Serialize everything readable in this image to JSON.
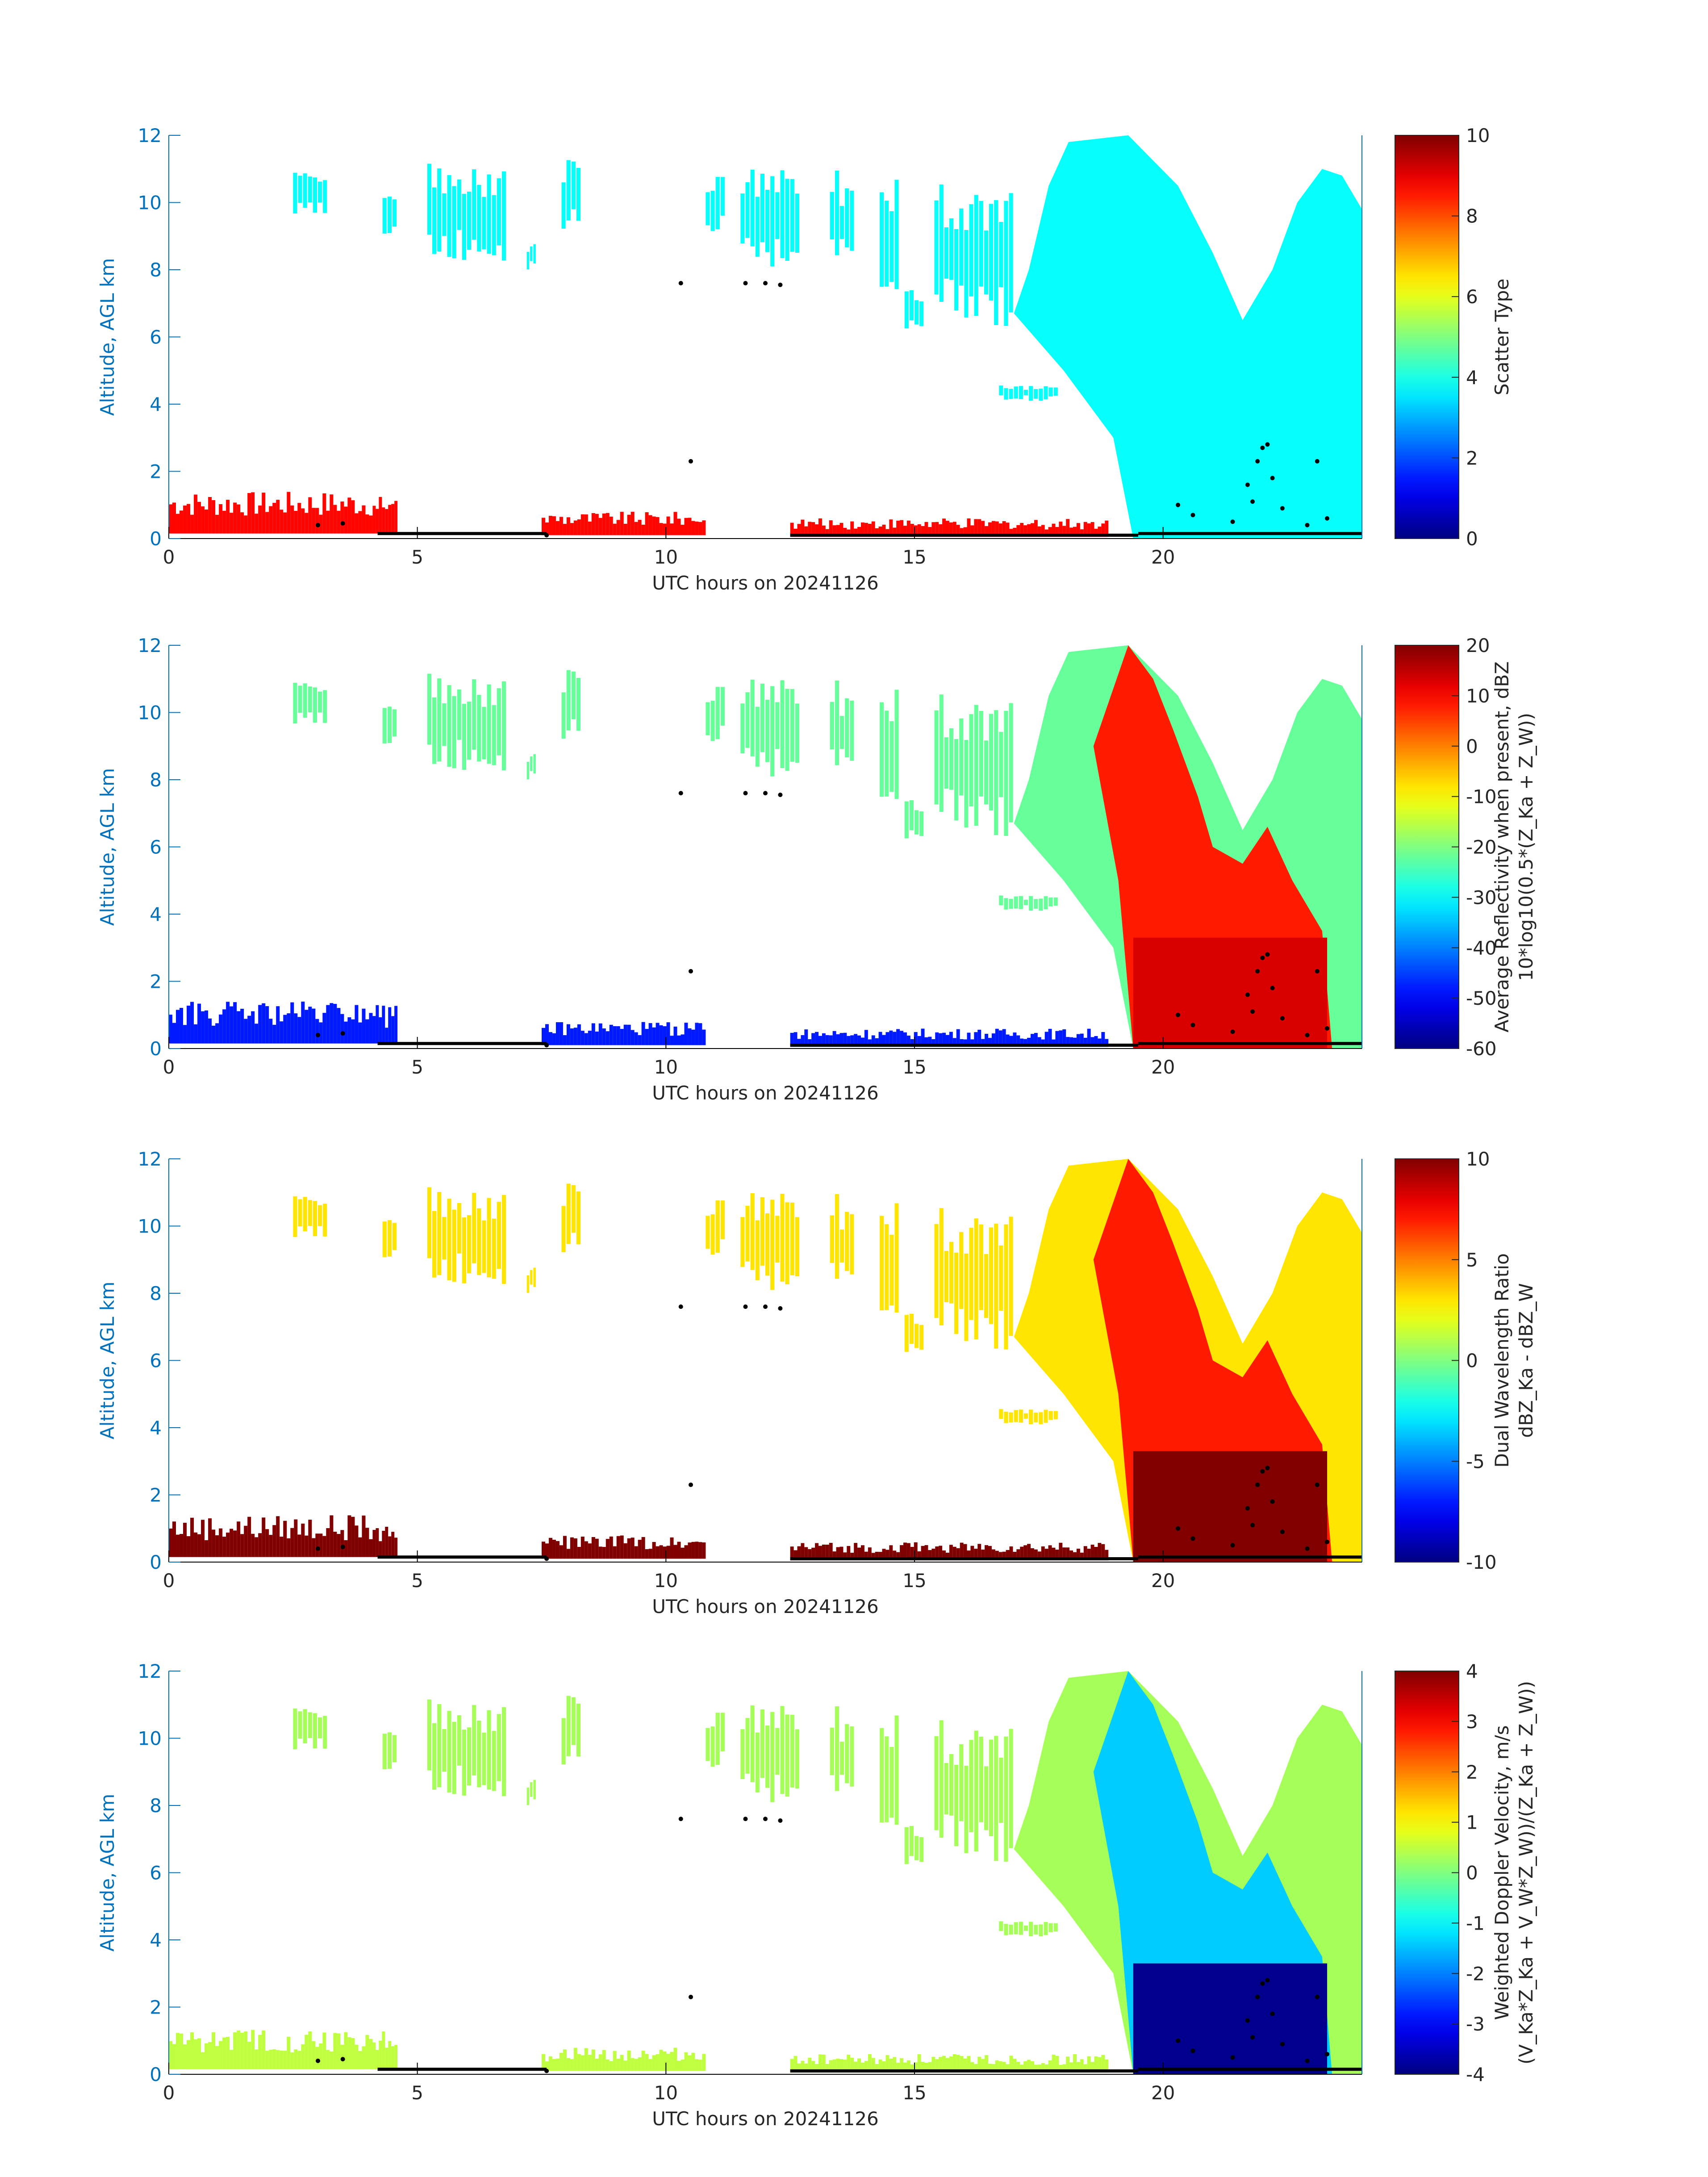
{
  "chart_data": [
    {
      "type": "heatmap",
      "title": "",
      "xlabel": "UTC hours on 20241126",
      "ylabel": "Altitude, AGL km",
      "xlim": [
        0,
        24
      ],
      "ylim": [
        0,
        12
      ],
      "xticks": [
        0,
        5,
        10,
        15,
        20
      ],
      "yticks": [
        0,
        2,
        4,
        6,
        8,
        10,
        12
      ],
      "colorbar": {
        "label_lines": [
          "Scatter Type"
        ],
        "clim": [
          0,
          10
        ],
        "ticks": [
          0,
          2,
          4,
          6,
          8,
          10
        ],
        "colormap": "jet"
      },
      "cloud_value": 3.8,
      "low_value": 8.7,
      "base_value": 0.2
    },
    {
      "type": "heatmap",
      "title": "",
      "xlabel": "UTC hours on 20241126",
      "ylabel": "Altitude, AGL km",
      "xlim": [
        0,
        24
      ],
      "ylim": [
        0,
        12
      ],
      "xticks": [
        0,
        5,
        10,
        15,
        20
      ],
      "yticks": [
        0,
        2,
        4,
        6,
        8,
        10,
        12
      ],
      "colorbar": {
        "label_lines": [
          "Average Reflectivity when present, dBZ",
          "10*log10(0.5*(Z_Ka + Z_W))"
        ],
        "clim": [
          -60,
          20
        ],
        "ticks": [
          -60,
          -50,
          -40,
          -30,
          -20,
          -10,
          0,
          10,
          20
        ],
        "colormap": "jet"
      },
      "cloud_value": -22,
      "core_value": 8,
      "rain_value": 13,
      "low_value": -48
    },
    {
      "type": "heatmap",
      "title": "",
      "xlabel": "UTC hours on 20241126",
      "ylabel": "Altitude, AGL km",
      "xlim": [
        0,
        24
      ],
      "ylim": [
        0,
        12
      ],
      "xticks": [
        0,
        5,
        10,
        15,
        20
      ],
      "yticks": [
        0,
        2,
        4,
        6,
        8,
        10,
        12
      ],
      "colorbar": {
        "label_lines": [
          "Dual Wavelength Ratio",
          "dBZ_Ka - dBZ_W"
        ],
        "clim": [
          -10,
          10
        ],
        "ticks": [
          -10,
          -5,
          0,
          5,
          10
        ],
        "colormap": "jet"
      },
      "cloud_value": 3,
      "core_value": 7,
      "rain_value": 10,
      "low_value": 10
    },
    {
      "type": "heatmap",
      "title": "",
      "xlabel": "UTC hours on 20241126",
      "ylabel": "Altitude, AGL km",
      "xlim": [
        0,
        24
      ],
      "ylim": [
        0,
        12
      ],
      "xticks": [
        0,
        5,
        10,
        15,
        20
      ],
      "yticks": [
        0,
        2,
        4,
        6,
        8,
        10,
        12
      ],
      "colorbar": {
        "label_lines": [
          "Weighted Doppler Velocity, m/s",
          "(V_Ka*Z_Ka + V_W*Z_W))/(Z_Ka + Z_W))"
        ],
        "clim": [
          -4,
          4
        ],
        "ticks": [
          -4,
          -3,
          -2,
          -1,
          0,
          1,
          2,
          3,
          4
        ],
        "colormap": "jet"
      },
      "cloud_value": 0.3,
      "core_value": -1.4,
      "rain_value": -3.9,
      "low_value": 0.5
    }
  ],
  "echo_regions": {
    "cirrus_patches": [
      [
        2.5,
        3.2,
        9.5,
        11.0
      ],
      [
        4.3,
        4.6,
        8.8,
        10.2
      ],
      [
        5.2,
        6.8,
        8.2,
        11.2
      ],
      [
        7.2,
        7.4,
        8.0,
        8.8
      ],
      [
        7.9,
        8.3,
        9.0,
        11.3
      ],
      [
        10.8,
        11.2,
        9.0,
        10.8
      ],
      [
        11.5,
        12.7,
        8.0,
        11.0
      ],
      [
        13.3,
        13.8,
        7.8,
        11.0
      ],
      [
        14.3,
        14.7,
        7.2,
        11.0
      ],
      [
        14.8,
        15.2,
        6.0,
        7.6
      ],
      [
        15.4,
        17.0,
        6.2,
        10.6
      ],
      [
        16.7,
        17.9,
        4.1,
        4.6
      ]
    ],
    "main_cloud": [
      [
        17.0,
        6.7
      ],
      [
        17.3,
        8.0
      ],
      [
        17.7,
        10.5
      ],
      [
        18.1,
        11.8
      ],
      [
        19.3,
        12.0
      ],
      [
        20.3,
        10.5
      ],
      [
        21.0,
        8.5
      ],
      [
        21.6,
        6.5
      ],
      [
        22.2,
        8.0
      ],
      [
        22.7,
        10.0
      ],
      [
        23.2,
        11.0
      ],
      [
        23.6,
        10.8
      ],
      [
        24.0,
        9.8
      ],
      [
        24.0,
        0.0
      ],
      [
        19.4,
        0.0
      ],
      [
        19.0,
        3.0
      ],
      [
        18.0,
        5.0
      ]
    ],
    "core": [
      [
        19.3,
        12.0
      ],
      [
        19.8,
        11.0
      ],
      [
        20.2,
        9.5
      ],
      [
        20.7,
        7.5
      ],
      [
        21.0,
        6.0
      ],
      [
        21.6,
        5.5
      ],
      [
        22.1,
        6.6
      ],
      [
        22.6,
        5.0
      ],
      [
        23.2,
        3.5
      ],
      [
        23.4,
        0.0
      ],
      [
        19.4,
        0.0
      ],
      [
        19.1,
        5.0
      ],
      [
        18.6,
        9.0
      ]
    ],
    "rain_layer": [
      19.4,
      23.3,
      0.0,
      3.3
    ],
    "low_clouds": [
      [
        0.0,
        4.1,
        0.15,
        1.4
      ],
      [
        4.1,
        4.6,
        0.15,
        1.3
      ],
      [
        7.5,
        10.8,
        0.1,
        0.8
      ],
      [
        12.5,
        18.9,
        0.05,
        0.6
      ]
    ]
  },
  "ground_markers": {
    "cloud_base_segments": [
      [
        4.2,
        7.6,
        0.15
      ],
      [
        12.5,
        19.5,
        0.1
      ],
      [
        19.5,
        24.0,
        0.15
      ]
    ],
    "points": [
      [
        10.3,
        7.6
      ],
      [
        10.5,
        2.3
      ],
      [
        11.6,
        7.6
      ],
      [
        12.0,
        7.6
      ],
      [
        12.3,
        7.55
      ],
      [
        3.0,
        0.4
      ],
      [
        3.5,
        0.45
      ],
      [
        7.6,
        0.1
      ],
      [
        20.3,
        1.0
      ],
      [
        20.6,
        0.7
      ],
      [
        21.4,
        0.5
      ],
      [
        21.7,
        1.6
      ],
      [
        21.9,
        2.3
      ],
      [
        22.0,
        2.7
      ],
      [
        22.1,
        2.8
      ],
      [
        21.8,
        1.1
      ],
      [
        22.2,
        1.8
      ],
      [
        22.4,
        0.9
      ],
      [
        23.1,
        2.3
      ],
      [
        23.3,
        0.6
      ],
      [
        22.9,
        0.4
      ]
    ]
  }
}
